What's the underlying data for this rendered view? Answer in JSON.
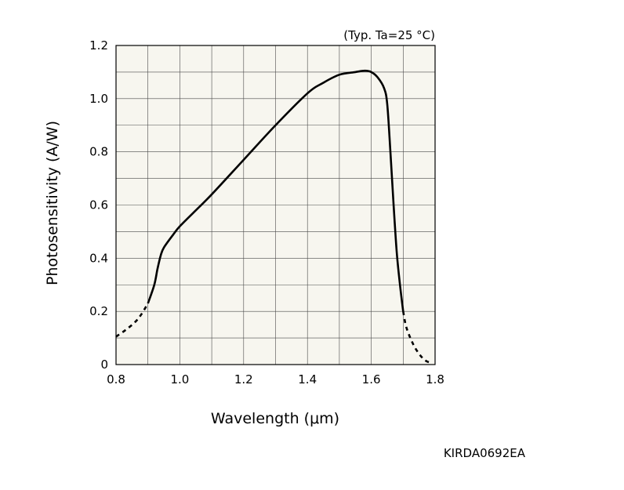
{
  "chart_data": {
    "type": "line",
    "condition_note": "(Typ. Ta=25 °C)",
    "xlabel": "Wavelength (μm)",
    "ylabel": "Photosensitivity (A/W)",
    "xlim": [
      0.8,
      1.8
    ],
    "ylim": [
      0,
      1.2
    ],
    "x_ticks": [
      0.8,
      1.0,
      1.2,
      1.4,
      1.6,
      1.8
    ],
    "x_tick_labels": [
      "0.8",
      "1.0",
      "1.2",
      "1.4",
      "1.6",
      "1.8"
    ],
    "y_ticks": [
      0,
      0.2,
      0.4,
      0.6,
      0.8,
      1.0,
      1.2
    ],
    "y_tick_labels": [
      "0",
      "0.2",
      "0.4",
      "0.6",
      "0.8",
      "1.0",
      "1.2"
    ],
    "grid": true,
    "background_color": "#f7f6ef",
    "line_color": "#000000",
    "series": [
      {
        "style": "dashed",
        "x": [
          0.8,
          0.83,
          0.86,
          0.88,
          0.9
        ],
        "y": [
          0.105,
          0.13,
          0.16,
          0.19,
          0.23
        ]
      },
      {
        "style": "solid",
        "x": [
          0.9,
          0.92,
          0.93,
          0.94,
          0.95,
          0.98,
          1.0,
          1.05,
          1.1,
          1.2,
          1.3,
          1.4,
          1.45,
          1.5,
          1.55,
          1.58,
          1.6,
          1.62,
          1.64,
          1.65,
          1.66,
          1.67,
          1.68,
          1.69,
          1.7
        ],
        "y": [
          0.23,
          0.3,
          0.36,
          0.41,
          0.44,
          0.49,
          0.52,
          0.58,
          0.64,
          0.77,
          0.9,
          1.02,
          1.06,
          1.09,
          1.1,
          1.105,
          1.1,
          1.08,
          1.04,
          0.98,
          0.8,
          0.6,
          0.42,
          0.3,
          0.2
        ]
      },
      {
        "style": "dashed",
        "x": [
          1.7,
          1.71,
          1.73,
          1.75,
          1.77,
          1.79
        ],
        "y": [
          0.2,
          0.14,
          0.08,
          0.04,
          0.015,
          0.005
        ]
      }
    ]
  },
  "figure_code": "KIRDA0692EA"
}
